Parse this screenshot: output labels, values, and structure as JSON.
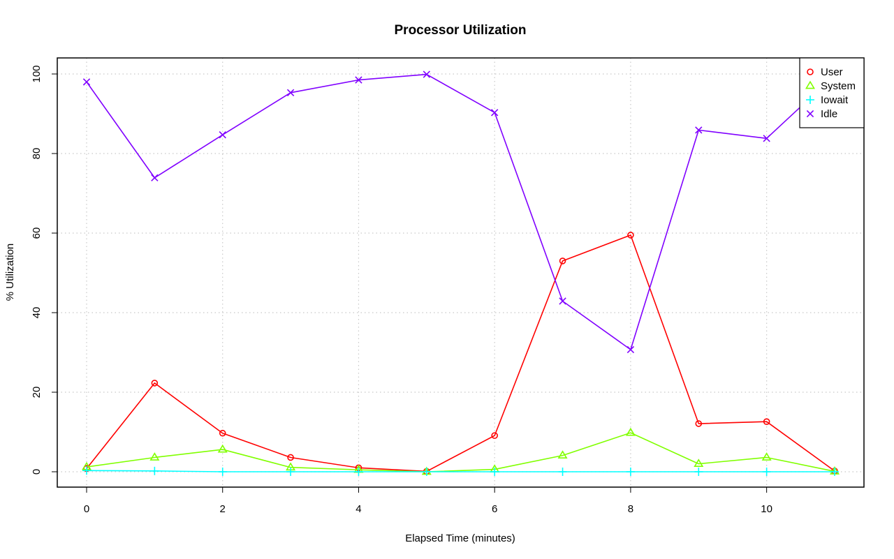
{
  "chart_data": {
    "type": "line",
    "title": "Processor Utilization",
    "xlabel": "Elapsed Time (minutes)",
    "ylabel": "% Utilization",
    "xlim": [
      0,
      11
    ],
    "ylim": [
      0,
      100
    ],
    "x_ticks": [
      0,
      2,
      4,
      6,
      8,
      10
    ],
    "y_ticks": [
      0,
      20,
      40,
      60,
      80,
      100
    ],
    "grid": true,
    "legend_position": "top-right",
    "x": [
      0,
      1,
      2,
      3,
      4,
      5,
      6,
      7,
      8,
      9,
      10,
      11
    ],
    "series": [
      {
        "name": "User",
        "color": "#ff0000",
        "marker": "circle",
        "values": [
          0.8,
          22.3,
          9.7,
          3.6,
          1.0,
          0.1,
          9.1,
          53.0,
          59.5,
          12.1,
          12.6,
          0.2
        ]
      },
      {
        "name": "System",
        "color": "#80ff00",
        "marker": "triangle",
        "values": [
          1.2,
          3.6,
          5.6,
          1.1,
          0.5,
          0.0,
          0.6,
          4.1,
          9.8,
          2.0,
          3.6,
          0.1
        ]
      },
      {
        "name": "Iowait",
        "color": "#00ffff",
        "marker": "plus",
        "values": [
          0.3,
          0.2,
          0.0,
          0.0,
          0.0,
          0.0,
          0.0,
          0.0,
          0.0,
          0.0,
          0.0,
          0.0
        ]
      },
      {
        "name": "Idle",
        "color": "#8000ff",
        "marker": "cross",
        "values": [
          98.0,
          73.9,
          84.7,
          95.3,
          98.5,
          99.9,
          90.3,
          42.9,
          30.7,
          85.9,
          83.8,
          99.7
        ]
      }
    ]
  }
}
